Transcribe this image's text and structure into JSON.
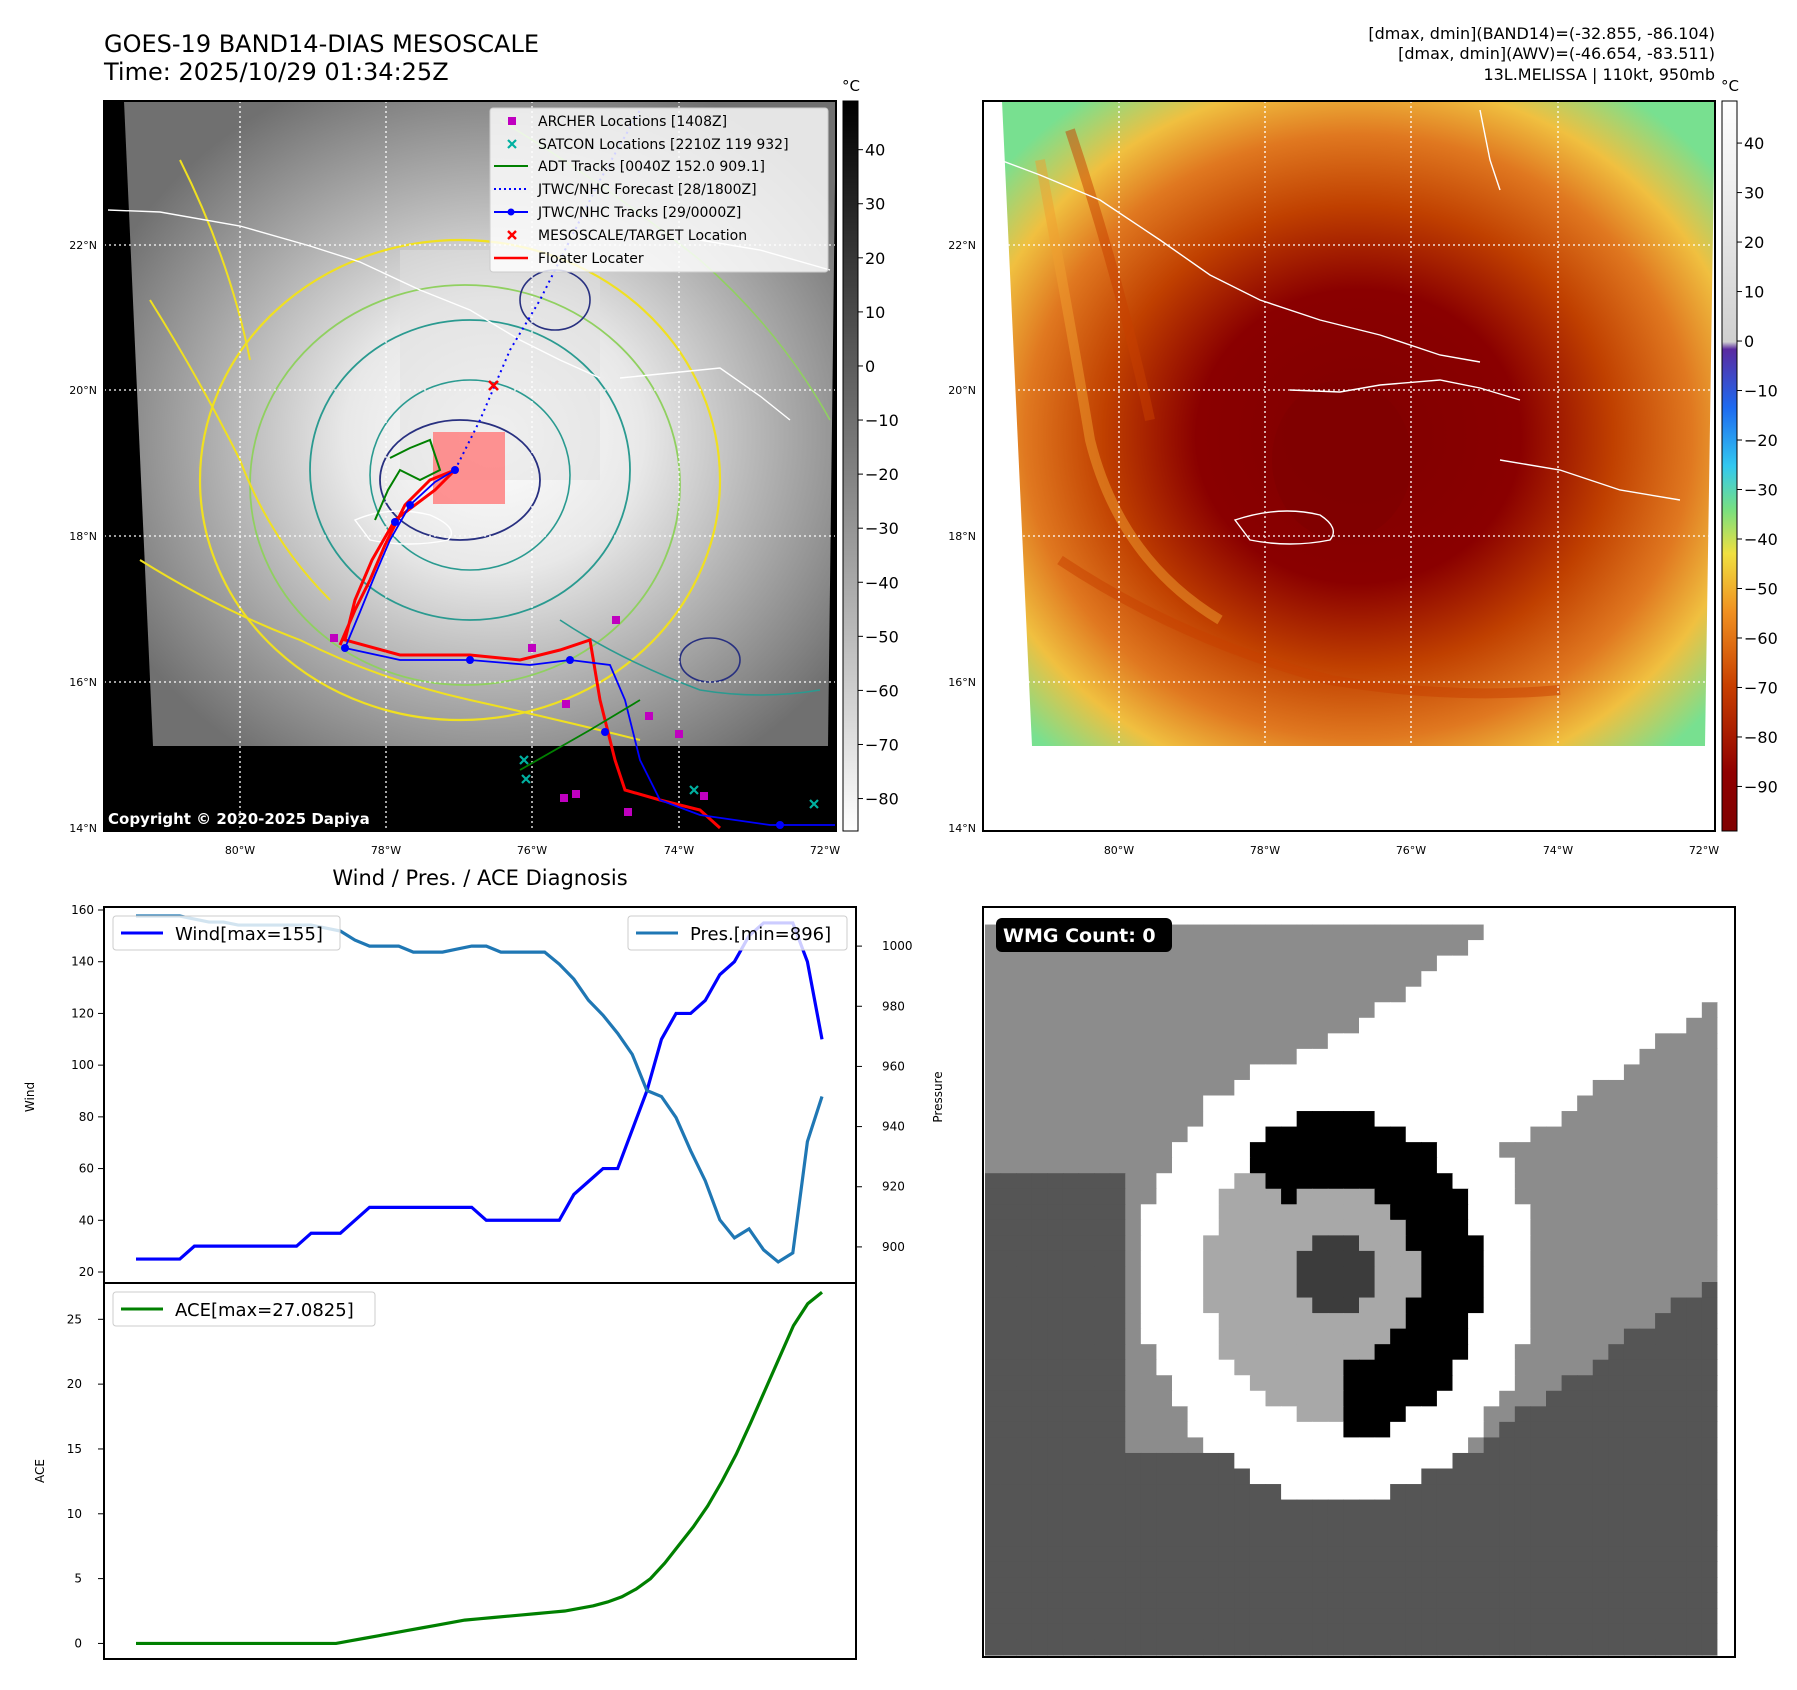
{
  "header": {
    "title_line1": "GOES-19 BAND14-DIAS MESOSCALE",
    "title_line2": "Time: 2025/10/29 01:34:25Z",
    "info_line1": "[dmax, dmin](BAND14)=(-32.855, -86.104)",
    "info_line2": "[dmax, dmin](AWV)=(-46.654, -83.511)",
    "info_line3": "13L.MELISSA | 110kt, 950mb"
  },
  "maps": {
    "lat_ticks": [
      "22°N",
      "20°N",
      "18°N",
      "16°N",
      "14°N"
    ],
    "lon_ticks": [
      "80°W",
      "78°W",
      "76°W",
      "74°W",
      "72°W"
    ],
    "copyright": "Copyright © 2020-2025 Dapiya",
    "left_colorbar": {
      "unit": "°C",
      "ticks": [
        "40",
        "30",
        "20",
        "10",
        "0",
        "−10",
        "−20",
        "−30",
        "−40",
        "−50",
        "−60",
        "−70",
        "−80"
      ]
    },
    "right_colorbar": {
      "unit": "°C",
      "ticks": [
        "40",
        "30",
        "20",
        "10",
        "0",
        "−10",
        "−20",
        "−30",
        "−40",
        "−50",
        "−60",
        "−70",
        "−80",
        "−90"
      ]
    },
    "legend": [
      {
        "label": "ARCHER Locations [1408Z]",
        "color": "#c000c0"
      },
      {
        "label": "SATCON Locations [2210Z 119 932]",
        "color": "#00b0a0"
      },
      {
        "label": "ADT Tracks [0040Z 152.0 909.1]",
        "color": "#008000"
      },
      {
        "label": "JTWC/NHC Forecast [28/1800Z]",
        "color": "#0000ff"
      },
      {
        "label": "JTWC/NHC Tracks [29/0000Z]",
        "color": "#0000ff"
      },
      {
        "label": "MESOSCALE/TARGET Location",
        "color": "#ff0000"
      },
      {
        "label": "Floater Locater",
        "color": "#ff0000"
      }
    ]
  },
  "diagnosis": {
    "title": "Wind / Pres. / ACE Diagnosis",
    "wind_ylabel": "Wind",
    "pres_ylabel": "Pressure",
    "ace_ylabel": "ACE",
    "wind_legend": "Wind[max=155]",
    "pres_legend": "Pres.[min=896]",
    "ace_legend": "ACE[max=27.0825]",
    "wind_ticks": [
      "160",
      "140",
      "120",
      "100",
      "80",
      "60",
      "40",
      "20"
    ],
    "pres_ticks": [
      "1000",
      "980",
      "960",
      "940",
      "920",
      "900"
    ],
    "ace_ticks": [
      "25",
      "20",
      "15",
      "10",
      "5",
      "0"
    ]
  },
  "wmg": {
    "label": "WMG Count: 0"
  },
  "chart_data": [
    {
      "type": "line",
      "title": "Wind / Pres. / ACE Diagnosis",
      "ylabel": "Wind",
      "ylim": [
        20,
        160
      ],
      "y2label": "Pressure",
      "y2lim": [
        888,
        1013
      ],
      "series": [
        {
          "name": "Wind[max=155]",
          "color": "#0000ff",
          "axis": "left",
          "values": [
            25,
            25,
            25,
            25,
            30,
            30,
            30,
            30,
            30,
            30,
            30,
            30,
            35,
            35,
            35,
            40,
            45,
            45,
            45,
            45,
            45,
            45,
            45,
            45,
            40,
            40,
            40,
            40,
            40,
            40,
            50,
            55,
            60,
            60,
            75,
            90,
            110,
            120,
            120,
            125,
            135,
            140,
            150,
            155,
            155,
            155,
            140,
            110
          ]
        },
        {
          "name": "Pres.[min=896]",
          "color": "#1f77b4",
          "axis": "right",
          "values": [
            1010,
            1010,
            1010,
            1010,
            1009,
            1008,
            1008,
            1007,
            1007,
            1007,
            1007,
            1007,
            1007,
            1006,
            1005,
            1002,
            1000,
            1000,
            1000,
            998,
            998,
            998,
            999,
            1000,
            1000,
            998,
            998,
            998,
            998,
            994,
            989,
            982,
            977,
            971,
            964,
            952,
            950,
            943,
            932,
            922,
            909,
            903,
            906,
            899,
            895,
            898,
            935,
            950
          ]
        }
      ]
    },
    {
      "type": "line",
      "ylabel": "ACE",
      "ylim": [
        -1.2,
        27.8
      ],
      "series": [
        {
          "name": "ACE[max=27.0825]",
          "color": "#008000",
          "values": [
            0,
            0,
            0,
            0,
            0,
            0,
            0,
            0,
            0,
            0,
            0,
            0,
            0,
            0,
            0,
            0.2,
            0.4,
            0.6,
            0.8,
            1.0,
            1.2,
            1.4,
            1.6,
            1.8,
            1.9,
            2.0,
            2.1,
            2.2,
            2.3,
            2.4,
            2.5,
            2.7,
            2.9,
            3.2,
            3.6,
            4.2,
            5.0,
            6.2,
            7.6,
            9.0,
            10.6,
            12.5,
            14.6,
            17.0,
            19.5,
            22.0,
            24.5,
            26.2,
            27.0825
          ]
        }
      ]
    }
  ]
}
